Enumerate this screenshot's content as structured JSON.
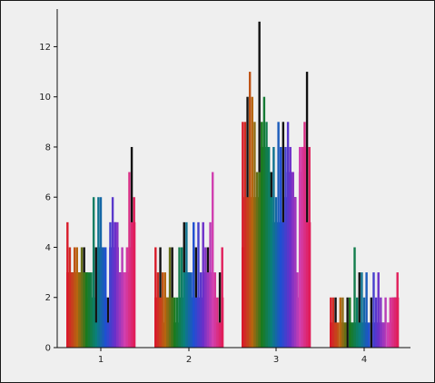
{
  "chart_data": {
    "type": "bar",
    "title": "",
    "xlabel": "",
    "ylabel": "",
    "categories": [
      "1",
      "2",
      "3",
      "4"
    ],
    "y_ticks": [
      "0",
      "2",
      "4",
      "6",
      "8",
      "10",
      "12"
    ],
    "ylim": [
      0,
      13.5
    ],
    "grid": false,
    "legend": "none",
    "groups": [
      {
        "label": "1",
        "base_values": [
          3,
          3,
          3,
          3,
          3,
          3,
          3,
          3,
          3,
          3,
          2,
          2,
          1,
          4,
          4,
          4,
          2,
          1,
          4,
          4,
          5,
          4,
          3,
          3,
          3,
          3,
          4,
          5,
          5
        ],
        "spike_values": [
          5,
          4,
          3,
          4,
          4,
          3,
          4,
          4,
          3,
          2,
          3,
          6,
          4,
          6,
          6,
          4,
          4,
          2,
          5,
          6,
          5,
          5,
          3,
          4,
          3,
          4,
          7,
          8,
          6
        ]
      },
      {
        "label": "2",
        "base_values": [
          2,
          2,
          2,
          1,
          2,
          2,
          2,
          2,
          1,
          1,
          2,
          2,
          3,
          3,
          3,
          2,
          2,
          2,
          2,
          2,
          3,
          3,
          3,
          3,
          3,
          2,
          1,
          1,
          2
        ],
        "spike_values": [
          4,
          3,
          4,
          3,
          3,
          2,
          4,
          4,
          2,
          2,
          4,
          4,
          5,
          5,
          3,
          3,
          5,
          4,
          5,
          3,
          5,
          4,
          4,
          5,
          7,
          3,
          2,
          3,
          4
        ]
      },
      {
        "label": "3",
        "base_values": [
          4,
          6,
          6,
          6,
          6,
          6,
          6,
          7,
          8,
          8,
          8,
          7,
          6,
          5,
          5,
          5,
          5,
          5,
          6,
          7,
          7,
          7,
          6,
          2,
          7,
          8,
          8,
          5,
          5
        ],
        "spike_values": [
          9,
          9,
          10,
          11,
          10,
          9,
          7,
          13,
          9,
          10,
          9,
          8,
          7,
          8,
          6,
          9,
          8,
          9,
          8,
          9,
          8,
          7,
          6,
          3,
          8,
          8,
          9,
          11,
          8
        ]
      },
      {
        "label": "4",
        "base_values": [
          1,
          1,
          1,
          0,
          1,
          1,
          1,
          0,
          1,
          1,
          1,
          1,
          1,
          1,
          1,
          1,
          0,
          0,
          1,
          1,
          1,
          1,
          1,
          0,
          1,
          1,
          2,
          2,
          2
        ],
        "spike_values": [
          2,
          2,
          2,
          1,
          2,
          2,
          1,
          2,
          2,
          1,
          4,
          2,
          3,
          3,
          2,
          3,
          1,
          2,
          3,
          2,
          3,
          2,
          1,
          2,
          1,
          2,
          2,
          2,
          3
        ]
      }
    ],
    "colors": [
      "#d81b2a",
      "#b5650f",
      "#1a7a1e",
      "#0a7f7a",
      "#1f4fd1",
      "#6b2fc9",
      "#d13fb0",
      "#e01e5a"
    ]
  }
}
